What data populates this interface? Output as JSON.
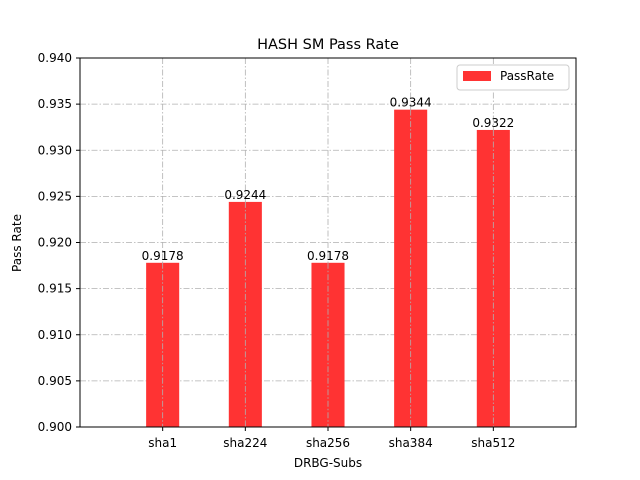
{
  "chart_data": {
    "type": "bar",
    "title": "HASH SM Pass Rate",
    "xlabel": "DRBG-Subs",
    "ylabel": "Pass Rate",
    "categories": [
      "sha1",
      "sha224",
      "sha256",
      "sha384",
      "sha512"
    ],
    "values": [
      0.9178,
      0.9244,
      0.9178,
      0.9344,
      0.9322
    ],
    "value_labels": [
      "0.9178",
      "0.9244",
      "0.9178",
      "0.9344",
      "0.9322"
    ],
    "ylim": [
      0.9,
      0.94
    ],
    "yticks": [
      "0.900",
      "0.905",
      "0.910",
      "0.915",
      "0.920",
      "0.925",
      "0.930",
      "0.935",
      "0.940"
    ],
    "grid": true,
    "legend": {
      "label": "PassRate",
      "position": "top-right"
    },
    "bar_color": "#ff3333"
  }
}
